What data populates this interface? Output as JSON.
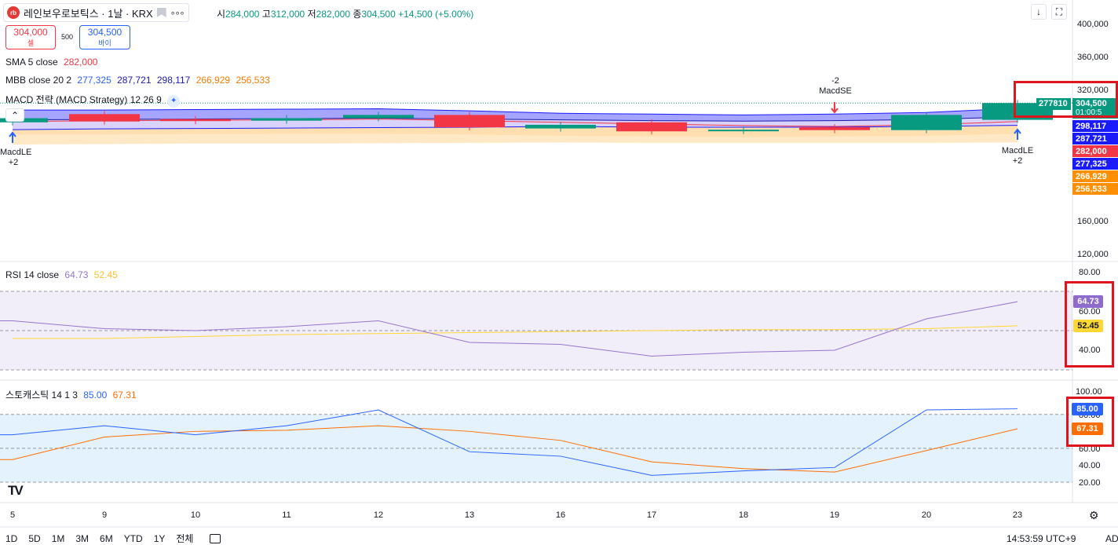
{
  "header": {
    "logo_text": "rb",
    "symbol": "레인보우로보틱스 · 1날 · KRX",
    "more": "∘∘∘",
    "ohlc": {
      "open_label": "시",
      "open": "284,000",
      "high_label": "고",
      "high": "312,000",
      "low_label": "저",
      "low": "282,000",
      "close_label": "종",
      "close": "304,500",
      "change": "+14,500 (+5.00%)"
    }
  },
  "trade": {
    "sell_price": "304,000",
    "sell_label": "셀",
    "qty": "500",
    "buy_price": "304,500",
    "buy_label": "바이"
  },
  "indicators": {
    "sma": {
      "label": "SMA 5 close",
      "value": "282,000"
    },
    "mbb": {
      "label": "MBB close 20 2",
      "values": [
        "277,325",
        "287,721",
        "298,117",
        "266,929",
        "256,533"
      ]
    },
    "macd": {
      "label": "MACD 전략 (MACD Strategy) 12 26 9"
    },
    "rsi": {
      "label": "RSI 14 close",
      "v1": "64.73",
      "v2": "52.45"
    },
    "stoch": {
      "label": "스토캐스틱 14 1 3",
      "v1": "85.00",
      "v2": "67.31"
    }
  },
  "price_axis": [
    "400,000",
    "360,000",
    "320,000",
    "160,000",
    "120,000"
  ],
  "rsi_axis": [
    "80.00",
    "60.00",
    "40.00"
  ],
  "stoch_axis": [
    "100.00",
    "80.00",
    "60.00",
    "40.00",
    "20.00"
  ],
  "price_tags": {
    "macd_tag": "277810",
    "close": "304,500",
    "countdown": "01:00:5",
    "upper": "298,117",
    "basis": "287,721",
    "sma": "282,000",
    "lower": "277,325",
    "lower2": "266,929",
    "lower3": "256,533"
  },
  "markers": {
    "left_label": "MacdLE",
    "left_sub": "+2",
    "right_label": "MacdLE",
    "right_sub": "+2",
    "short_label": "MacdSE",
    "short_sub": "-2"
  },
  "x_axis": [
    "5",
    "9",
    "10",
    "11",
    "12",
    "13",
    "16",
    "17",
    "18",
    "19",
    "20",
    "23"
  ],
  "bottom": {
    "ranges": [
      "1D",
      "5D",
      "1M",
      "3M",
      "6M",
      "YTD",
      "1Y",
      "전체"
    ],
    "time": "14:53:59 UTC+9",
    "adj": "AD"
  },
  "colors": {
    "up": "#089981",
    "down": "#f23645",
    "rsi": "#9575cd",
    "rsi_ma": "#fdd835",
    "stoch_k": "#2962ff",
    "stoch_d": "#ff6d00"
  },
  "chart_data": {
    "type": "line",
    "categories": [
      "5",
      "9",
      "10",
      "11",
      "12",
      "13",
      "16",
      "17",
      "18",
      "19",
      "20",
      "23"
    ],
    "candles": [
      {
        "o": 281000,
        "c": 286000
      },
      {
        "o": 291000,
        "c": 282000
      },
      {
        "o": 285000,
        "c": 282500
      },
      {
        "o": 283000,
        "c": 286000
      },
      {
        "o": 286000,
        "c": 290000
      },
      {
        "o": 290000,
        "c": 275000
      },
      {
        "o": 273500,
        "c": 278000
      },
      {
        "o": 281000,
        "c": 270000
      },
      {
        "o": 270500,
        "c": 272000
      },
      {
        "o": 275000,
        "c": 271500
      },
      {
        "o": 271500,
        "c": 290000
      },
      {
        "o": 284000,
        "c": 304500
      }
    ],
    "rsi": [
      55,
      51,
      50,
      52,
      55,
      44,
      43,
      37,
      39,
      40,
      56,
      64.73
    ],
    "rsi_ma": [
      46,
      46,
      47,
      48,
      48.5,
      49,
      49.5,
      50,
      50.5,
      50.5,
      51,
      52.45
    ],
    "stoch_k": [
      62,
      70,
      62,
      70,
      84,
      47,
      43,
      26,
      30,
      33,
      84,
      85
    ],
    "stoch_d": [
      40,
      60,
      65,
      66,
      70,
      65,
      57,
      38,
      32,
      29,
      48,
      67.31
    ]
  }
}
